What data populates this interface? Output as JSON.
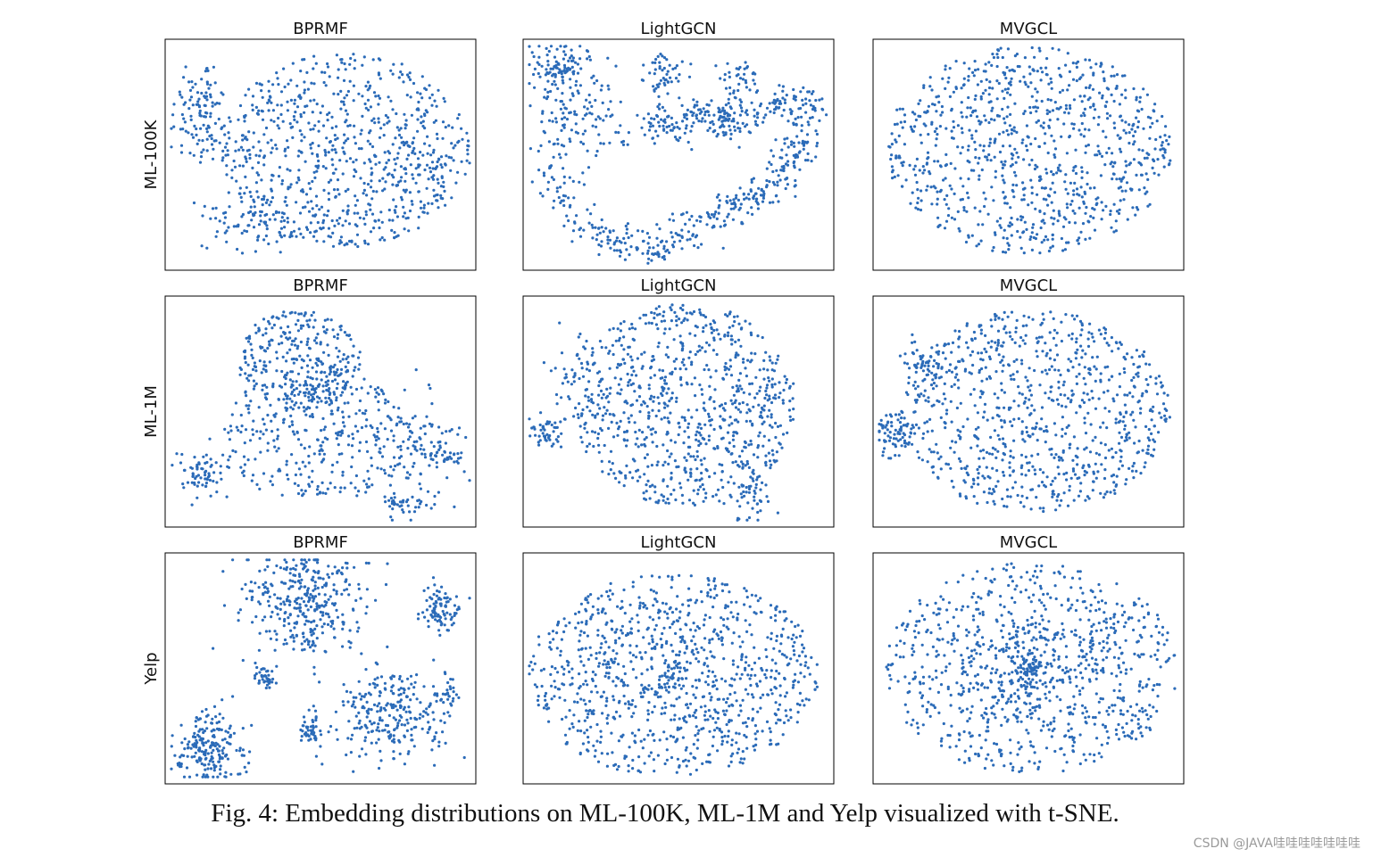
{
  "figure": {
    "caption": "Fig. 4: Embedding distributions on ML-100K, ML-1M and Yelp visualized with t-SNE.",
    "watermark": "CSDN @JAVA哇哇哇哇哇哇哇",
    "point_color": "#2b6bb8",
    "axis_color": "#000000"
  },
  "chart_data": [
    {
      "type": "scatter",
      "title": "BPRMF",
      "row_label": "ML-100K",
      "dataset": "ML-100K",
      "method": "BPRMF",
      "approx_points": 1000,
      "pattern": "broad cloud with a separated cluster on the left"
    },
    {
      "type": "scatter",
      "title": "LightGCN",
      "row_label": "",
      "dataset": "ML-100K",
      "method": "LightGCN",
      "approx_points": 1000,
      "pattern": "ring of chained clusters with an empty center"
    },
    {
      "type": "scatter",
      "title": "MVGCL",
      "row_label": "",
      "dataset": "ML-100K",
      "method": "MVGCL",
      "approx_points": 1000,
      "pattern": "uniform elliptical cloud"
    },
    {
      "type": "scatter",
      "title": "BPRMF",
      "row_label": "ML-1M",
      "dataset": "ML-1M",
      "method": "BPRMF",
      "approx_points": 1000,
      "pattern": "several loose clusters"
    },
    {
      "type": "scatter",
      "title": "LightGCN",
      "row_label": "",
      "dataset": "ML-1M",
      "method": "LightGCN",
      "approx_points": 1000,
      "pattern": "dense cloud with small side clusters"
    },
    {
      "type": "scatter",
      "title": "MVGCL",
      "row_label": "",
      "dataset": "ML-1M",
      "method": "MVGCL",
      "approx_points": 1000,
      "pattern": "uniform elliptical cloud"
    },
    {
      "type": "scatter",
      "title": "BPRMF",
      "row_label": "Yelp",
      "dataset": "Yelp",
      "method": "BPRMF",
      "approx_points": 1000,
      "pattern": "isolated tight clusters"
    },
    {
      "type": "scatter",
      "title": "LightGCN",
      "row_label": "",
      "dataset": "Yelp",
      "method": "LightGCN",
      "approx_points": 1000,
      "pattern": "uniform elliptical cloud"
    },
    {
      "type": "scatter",
      "title": "MVGCL",
      "row_label": "",
      "dataset": "Yelp",
      "method": "MVGCL",
      "approx_points": 1000,
      "pattern": "uniform cloud denser at the center"
    }
  ]
}
